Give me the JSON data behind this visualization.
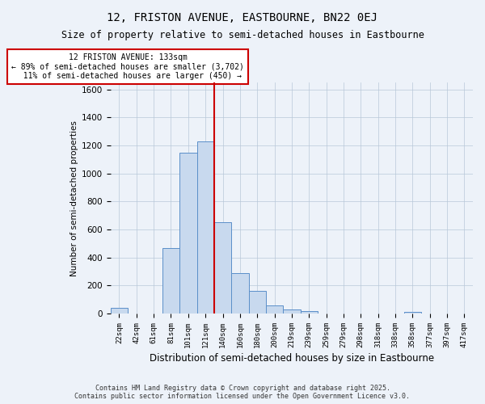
{
  "title": "12, FRISTON AVENUE, EASTBOURNE, BN22 0EJ",
  "subtitle": "Size of property relative to semi-detached houses in Eastbourne",
  "xlabel": "Distribution of semi-detached houses by size in Eastbourne",
  "ylabel": "Number of semi-detached properties",
  "bin_labels": [
    "22sqm",
    "42sqm",
    "61sqm",
    "81sqm",
    "101sqm",
    "121sqm",
    "140sqm",
    "160sqm",
    "180sqm",
    "200sqm",
    "219sqm",
    "239sqm",
    "259sqm",
    "279sqm",
    "298sqm",
    "318sqm",
    "338sqm",
    "358sqm",
    "377sqm",
    "397sqm",
    "417sqm"
  ],
  "bar_heights": [
    40,
    0,
    0,
    470,
    1150,
    1230,
    650,
    290,
    160,
    60,
    30,
    20,
    0,
    0,
    0,
    0,
    0,
    10,
    0,
    0,
    0
  ],
  "bar_color": "#c8d9ee",
  "bar_edge_color": "#5b8fc9",
  "vline_x_index": 6,
  "vline_color": "#cc0000",
  "annotation_text": "12 FRISTON AVENUE: 133sqm\n← 89% of semi-detached houses are smaller (3,702)\n  11% of semi-detached houses are larger (450) →",
  "annotation_box_color": "#cc0000",
  "ylim": [
    0,
    1650
  ],
  "yticks": [
    0,
    200,
    400,
    600,
    800,
    1000,
    1200,
    1400,
    1600
  ],
  "footer_text": "Contains HM Land Registry data © Crown copyright and database right 2025.\nContains public sector information licensed under the Open Government Licence v3.0.",
  "bg_color": "#edf2f9",
  "plot_bg_color": "#edf2f9"
}
